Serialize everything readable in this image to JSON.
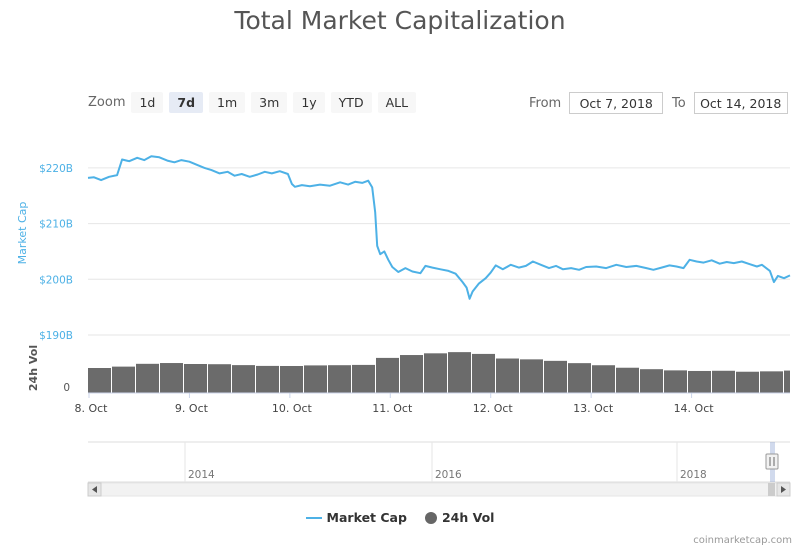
{
  "title": "Total Market Capitalization",
  "zoom": {
    "label": "Zoom",
    "buttons": [
      "1d",
      "7d",
      "1m",
      "3m",
      "1y",
      "YTD",
      "ALL"
    ],
    "active": "7d"
  },
  "range": {
    "from_label": "From",
    "from_value": "Oct 7, 2018",
    "to_label": "To",
    "to_value": "Oct 14, 2018"
  },
  "colors": {
    "market_cap": "#4db1e6",
    "volume": "#6b6b6b",
    "grid": "#e6e6e6"
  },
  "credit": "coinmarketcap.com",
  "chart_data": {
    "type": "line",
    "title": "Total Market Capitalization",
    "x_ticks": [
      "8. Oct",
      "9. Oct",
      "10. Oct",
      "11. Oct",
      "12. Oct",
      "13. Oct",
      "14. Oct"
    ],
    "x_range_days": [
      7.99,
      14.98
    ],
    "y_axis": {
      "label": "Market Cap",
      "ticks": [
        "$220B",
        "$210B",
        "$200B",
        "$190B"
      ],
      "tick_values": [
        220,
        210,
        200,
        190
      ],
      "ylim": [
        190,
        225
      ]
    },
    "volume_axis": {
      "label": "24h Vol",
      "ticks": [
        "0"
      ]
    },
    "series": [
      {
        "name": "Market Cap",
        "unit": "billion USD",
        "points": [
          [
            7.99,
            218.2
          ],
          [
            8.05,
            218.3
          ],
          [
            8.12,
            217.8
          ],
          [
            8.2,
            218.4
          ],
          [
            8.28,
            218.7
          ],
          [
            8.33,
            221.5
          ],
          [
            8.4,
            221.2
          ],
          [
            8.48,
            221.8
          ],
          [
            8.55,
            221.4
          ],
          [
            8.62,
            222.1
          ],
          [
            8.7,
            221.9
          ],
          [
            8.78,
            221.3
          ],
          [
            8.85,
            221.0
          ],
          [
            8.92,
            221.4
          ],
          [
            9.0,
            221.1
          ],
          [
            9.08,
            220.5
          ],
          [
            9.15,
            220.0
          ],
          [
            9.22,
            219.6
          ],
          [
            9.3,
            219.0
          ],
          [
            9.38,
            219.3
          ],
          [
            9.45,
            218.6
          ],
          [
            9.52,
            218.9
          ],
          [
            9.6,
            218.4
          ],
          [
            9.68,
            218.8
          ],
          [
            9.75,
            219.3
          ],
          [
            9.82,
            219.0
          ],
          [
            9.9,
            219.4
          ],
          [
            9.98,
            218.9
          ],
          [
            10.02,
            217.1
          ],
          [
            10.05,
            216.6
          ],
          [
            10.12,
            216.9
          ],
          [
            10.2,
            216.7
          ],
          [
            10.3,
            217.0
          ],
          [
            10.4,
            216.8
          ],
          [
            10.5,
            217.4
          ],
          [
            10.58,
            217.0
          ],
          [
            10.65,
            217.5
          ],
          [
            10.72,
            217.3
          ],
          [
            10.78,
            217.7
          ],
          [
            10.82,
            216.5
          ],
          [
            10.85,
            212.0
          ],
          [
            10.87,
            206.0
          ],
          [
            10.9,
            204.5
          ],
          [
            10.94,
            205.0
          ],
          [
            10.98,
            203.5
          ],
          [
            11.02,
            202.2
          ],
          [
            11.08,
            201.3
          ],
          [
            11.15,
            202.0
          ],
          [
            11.22,
            201.4
          ],
          [
            11.3,
            201.1
          ],
          [
            11.35,
            202.4
          ],
          [
            11.42,
            202.1
          ],
          [
            11.5,
            201.8
          ],
          [
            11.58,
            201.5
          ],
          [
            11.65,
            201.0
          ],
          [
            11.72,
            199.5
          ],
          [
            11.76,
            198.5
          ],
          [
            11.79,
            196.5
          ],
          [
            11.82,
            197.8
          ],
          [
            11.88,
            199.2
          ],
          [
            11.95,
            200.2
          ],
          [
            12.0,
            201.2
          ],
          [
            12.05,
            202.5
          ],
          [
            12.12,
            201.8
          ],
          [
            12.2,
            202.6
          ],
          [
            12.28,
            202.1
          ],
          [
            12.35,
            202.4
          ],
          [
            12.42,
            203.2
          ],
          [
            12.5,
            202.6
          ],
          [
            12.58,
            202.0
          ],
          [
            12.65,
            202.4
          ],
          [
            12.72,
            201.8
          ],
          [
            12.8,
            202.0
          ],
          [
            12.88,
            201.7
          ],
          [
            12.95,
            202.2
          ],
          [
            13.05,
            202.3
          ],
          [
            13.15,
            202.0
          ],
          [
            13.25,
            202.6
          ],
          [
            13.35,
            202.2
          ],
          [
            13.45,
            202.4
          ],
          [
            13.55,
            202.0
          ],
          [
            13.62,
            201.7
          ],
          [
            13.7,
            202.1
          ],
          [
            13.78,
            202.5
          ],
          [
            13.85,
            202.3
          ],
          [
            13.92,
            202.0
          ],
          [
            13.98,
            203.5
          ],
          [
            14.05,
            203.2
          ],
          [
            14.12,
            203.0
          ],
          [
            14.2,
            203.4
          ],
          [
            14.28,
            202.8
          ],
          [
            14.35,
            203.1
          ],
          [
            14.42,
            202.9
          ],
          [
            14.5,
            203.2
          ],
          [
            14.58,
            202.7
          ],
          [
            14.65,
            202.3
          ],
          [
            14.7,
            202.6
          ],
          [
            14.78,
            201.5
          ],
          [
            14.82,
            199.5
          ],
          [
            14.86,
            200.6
          ],
          [
            14.92,
            200.2
          ],
          [
            14.98,
            200.7
          ]
        ]
      },
      {
        "name": "24h Vol",
        "relative": true,
        "points": [
          [
            8.0,
            0.5
          ],
          [
            8.2,
            0.52
          ],
          [
            8.35,
            0.56
          ],
          [
            8.5,
            0.59
          ],
          [
            8.7,
            0.6
          ],
          [
            8.9,
            0.58
          ],
          [
            9.1,
            0.58
          ],
          [
            9.3,
            0.57
          ],
          [
            9.5,
            0.55
          ],
          [
            9.7,
            0.54
          ],
          [
            9.9,
            0.54
          ],
          [
            10.1,
            0.55
          ],
          [
            10.3,
            0.56
          ],
          [
            10.5,
            0.55
          ],
          [
            10.7,
            0.57
          ],
          [
            10.85,
            0.7
          ],
          [
            11.0,
            0.74
          ],
          [
            11.2,
            0.78
          ],
          [
            11.4,
            0.8
          ],
          [
            11.6,
            0.82
          ],
          [
            11.8,
            0.79
          ],
          [
            11.95,
            0.7
          ],
          [
            12.15,
            0.68
          ],
          [
            12.35,
            0.67
          ],
          [
            12.55,
            0.64
          ],
          [
            12.75,
            0.6
          ],
          [
            12.95,
            0.57
          ],
          [
            13.15,
            0.52
          ],
          [
            13.35,
            0.49
          ],
          [
            13.55,
            0.47
          ],
          [
            13.75,
            0.45
          ],
          [
            13.95,
            0.44
          ],
          [
            14.15,
            0.45
          ],
          [
            14.35,
            0.43
          ],
          [
            14.55,
            0.42
          ],
          [
            14.75,
            0.44
          ],
          [
            14.95,
            0.45
          ]
        ]
      }
    ],
    "navigator": {
      "x_ticks": [
        "2014",
        "2016",
        "2018"
      ]
    },
    "legend": {
      "position": "bottom",
      "items": [
        "Market Cap",
        "24h Vol"
      ]
    }
  }
}
